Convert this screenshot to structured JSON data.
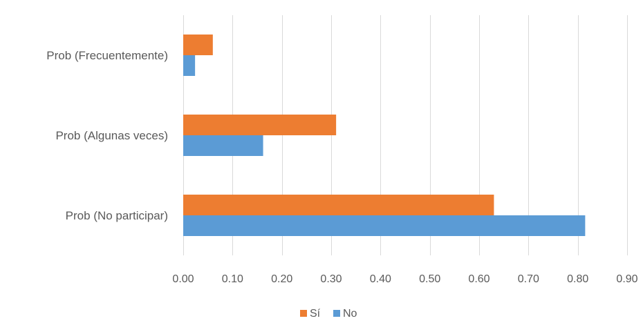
{
  "chart_data": {
    "type": "bar",
    "orientation": "horizontal",
    "categories": [
      "Prob (No participar)",
      "Prob (Algunas veces)",
      "Prob (Frecuentemente)"
    ],
    "series": [
      {
        "name": "Sí",
        "color": "#ED7D31",
        "values": [
          0.63,
          0.31,
          0.06
        ]
      },
      {
        "name": "No",
        "color": "#5B9BD5",
        "values": [
          0.815,
          0.162,
          0.024
        ]
      }
    ],
    "xlim": [
      0,
      0.9
    ],
    "xticks": [
      0,
      0.1,
      0.2,
      0.3,
      0.4,
      0.5,
      0.6,
      0.7,
      0.8,
      0.9
    ],
    "xtick_labels": [
      "0.00",
      "0.10",
      "0.20",
      "0.30",
      "0.40",
      "0.50",
      "0.60",
      "0.70",
      "0.80",
      "0.90"
    ],
    "grid": true,
    "legend_position": "bottom",
    "title": "",
    "xlabel": "",
    "ylabel": ""
  },
  "colors": {
    "gridline": "#D9D9D9",
    "text": "#595959"
  }
}
